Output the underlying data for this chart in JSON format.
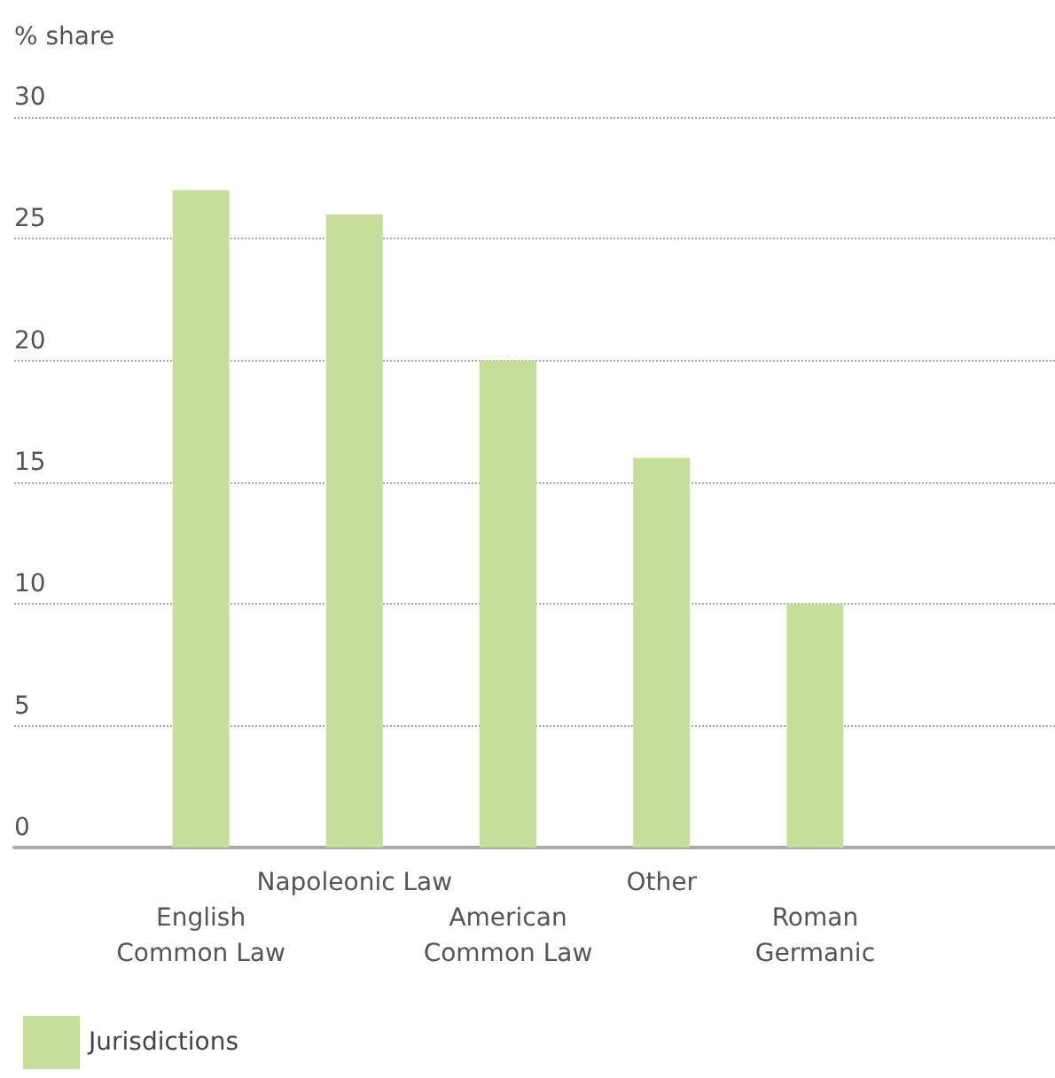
{
  "chart_data": {
    "type": "bar",
    "ylabel": "% share",
    "categories": [
      "English Common Law",
      "Napoleonic Law",
      "American Common Law",
      "Other",
      "Roman Germanic"
    ],
    "series": [
      {
        "name": "Jurisdictions",
        "color": "#c5df9b",
        "values": [
          27,
          26,
          20,
          16,
          10
        ]
      }
    ],
    "ylim": [
      0,
      30
    ],
    "yticks": [
      0,
      5,
      10,
      15,
      20,
      25,
      30
    ],
    "grid": "y",
    "legend": "bottom left"
  }
}
